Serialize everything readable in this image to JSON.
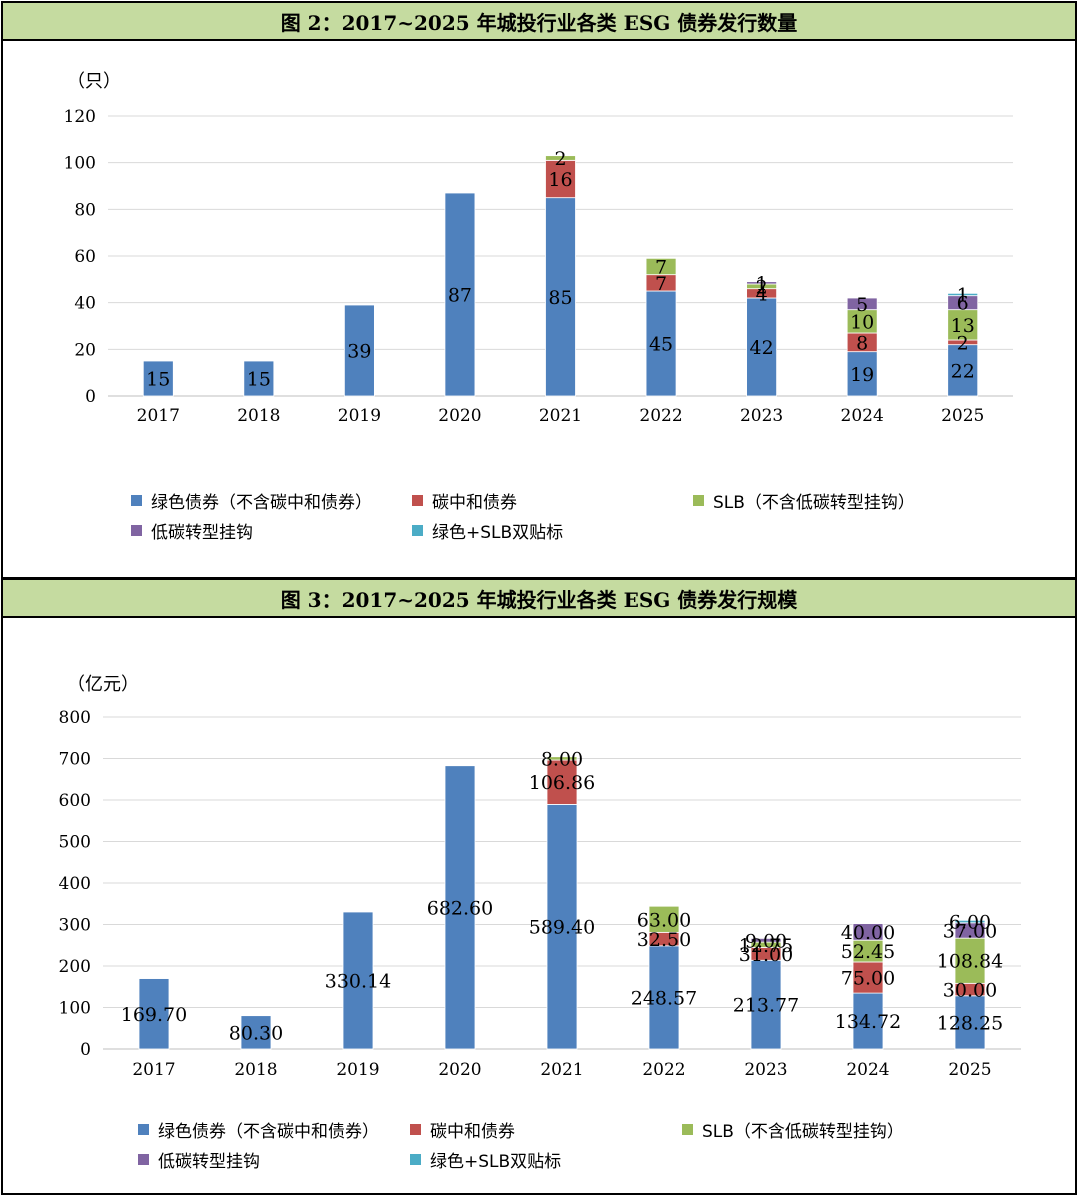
{
  "colors": {
    "green_bond": "#4f81bd",
    "carbon_neutral": "#c0504d",
    "slb": "#9bbb59",
    "low_carbon_transition": "#8064a2",
    "green_slb_dual": "#4bacc6"
  },
  "chart_data": [
    {
      "type": "bar",
      "stacked": true,
      "title": "图 2：2017~2025 年城投行业各类 ESG 债券发行数量",
      "ylabel": "（只）",
      "xlabel": "",
      "ylim": [
        0,
        120
      ],
      "yticks": [
        "0",
        "20",
        "40",
        "60",
        "80",
        "100",
        "120"
      ],
      "grid": true,
      "legend": "bottom",
      "categories": [
        "2017",
        "2018",
        "2019",
        "2020",
        "2021",
        "2022",
        "2023",
        "2024",
        "2025"
      ],
      "series": [
        {
          "name": "绿色债券（不含碳中和债券）",
          "color_key": "green_bond",
          "values": [
            15,
            15,
            39,
            87,
            85,
            45,
            42,
            19,
            22
          ],
          "labels": [
            "15",
            "15",
            "39",
            "87",
            "85",
            "45",
            "42",
            "19",
            "22"
          ]
        },
        {
          "name": "碳中和债券",
          "color_key": "carbon_neutral",
          "values": [
            0,
            0,
            0,
            0,
            16,
            7,
            4,
            8,
            2
          ],
          "labels": [
            "",
            "",
            "",
            "",
            "16",
            "7",
            "4",
            "8",
            "2"
          ]
        },
        {
          "name": "SLB（不含低碳转型挂钩）",
          "color_key": "slb",
          "values": [
            0,
            0,
            0,
            0,
            2,
            7,
            2,
            10,
            13
          ],
          "labels": [
            "",
            "",
            "",
            "",
            "2",
            "7",
            "2",
            "10",
            "13"
          ]
        },
        {
          "name": "低碳转型挂钩",
          "color_key": "low_carbon_transition",
          "values": [
            0,
            0,
            0,
            0,
            0,
            0,
            1,
            5,
            6
          ],
          "labels": [
            "",
            "",
            "",
            "",
            "",
            "",
            "1",
            "5",
            "6"
          ]
        },
        {
          "name": "绿色+SLB双贴标",
          "color_key": "green_slb_dual",
          "values": [
            0,
            0,
            0,
            0,
            0,
            0,
            0,
            0,
            1
          ],
          "labels": [
            "",
            "",
            "",
            "",
            "",
            "",
            "",
            "",
            "1"
          ]
        }
      ]
    },
    {
      "type": "bar",
      "stacked": true,
      "title": "图 3：2017~2025 年城投行业各类 ESG 债券发行规模",
      "ylabel": "（亿元）",
      "xlabel": "",
      "ylim": [
        0,
        800
      ],
      "yticks": [
        "0",
        "100",
        "200",
        "300",
        "400",
        "500",
        "600",
        "700",
        "800"
      ],
      "grid": true,
      "legend": "bottom",
      "categories": [
        "2017",
        "2018",
        "2019",
        "2020",
        "2021",
        "2022",
        "2023",
        "2024",
        "2025"
      ],
      "series": [
        {
          "name": "绿色债券（不含碳中和债券）",
          "color_key": "green_bond",
          "values": [
            169.7,
            80.3,
            330.14,
            682.6,
            589.4,
            248.57,
            213.77,
            134.72,
            128.25
          ],
          "labels": [
            "169.70",
            "80.30",
            "330.14",
            "682.60",
            "589.40",
            "248.57",
            "213.77",
            "134.72",
            "128.25"
          ]
        },
        {
          "name": "碳中和债券",
          "color_key": "carbon_neutral",
          "values": [
            0,
            0,
            0,
            0,
            106.86,
            32.5,
            31.0,
            75.0,
            30.0
          ],
          "labels": [
            "",
            "",
            "",
            "",
            "106.86",
            "32.50",
            "31.00",
            "75.00",
            "30.00"
          ]
        },
        {
          "name": "SLB（不含低碳转型挂钩）",
          "color_key": "slb",
          "values": [
            0,
            0,
            0,
            0,
            8.0,
            63.0,
            12.75,
            52.45,
            108.84
          ],
          "labels": [
            "",
            "",
            "",
            "",
            "8.00",
            "63.00",
            "12.75",
            "52.45",
            "108.84"
          ]
        },
        {
          "name": "低碳转型挂钩",
          "color_key": "low_carbon_transition",
          "values": [
            0,
            0,
            0,
            0,
            0,
            0,
            9.0,
            40.0,
            37.0
          ],
          "labels": [
            "",
            "",
            "",
            "",
            "",
            "",
            "9.00",
            "40.00",
            "37.00"
          ]
        },
        {
          "name": "绿色+SLB双贴标",
          "color_key": "green_slb_dual",
          "values": [
            0,
            0,
            0,
            0,
            0,
            0,
            0,
            0,
            6.0
          ],
          "labels": [
            "",
            "",
            "",
            "",
            "",
            "",
            "",
            "",
            "6.00"
          ]
        }
      ]
    }
  ]
}
